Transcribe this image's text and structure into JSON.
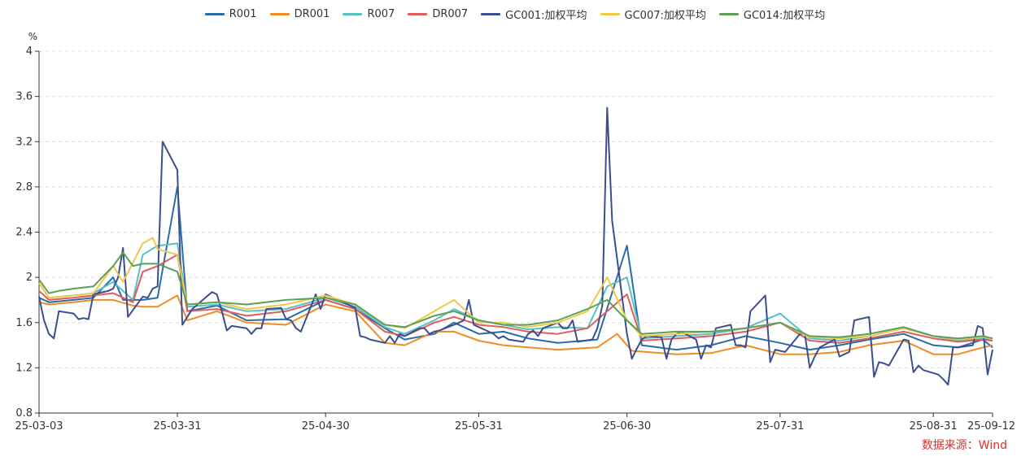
{
  "chart_data": {
    "type": "line",
    "ylabel": "%",
    "ylim": [
      0.8,
      4
    ],
    "yticks": [
      "0.8",
      "1.2",
      "1.6",
      "2",
      "2.4",
      "2.8",
      "3.2",
      "3.6",
      "4"
    ],
    "xticks": [
      "25-03-03",
      "25-03-31",
      "25-04-30",
      "25-05-31",
      "25-06-30",
      "25-07-31",
      "25-08-31",
      "25-09-12"
    ],
    "grid": "horizontal-dashed",
    "legend_position": "top-center",
    "source": "数据来源：Wind",
    "series": [
      {
        "name": "R001",
        "color": "#2b6ca3",
        "x": [
          "25-03-03",
          "25-03-05",
          "25-03-10",
          "25-03-14",
          "25-03-18",
          "25-03-20",
          "25-03-24",
          "25-03-27",
          "25-03-31",
          "25-04-02",
          "25-04-08",
          "25-04-14",
          "25-04-22",
          "25-04-30",
          "25-05-06",
          "25-05-12",
          "25-05-16",
          "25-05-22",
          "25-05-26",
          "25-05-31",
          "25-06-05",
          "25-06-10",
          "25-06-16",
          "25-06-24",
          "25-06-30",
          "25-07-03",
          "25-07-10",
          "25-07-17",
          "25-07-24",
          "25-07-31",
          "25-08-06",
          "25-08-12",
          "25-08-18",
          "25-08-25",
          "25-08-31",
          "25-09-05",
          "25-09-10",
          "25-09-12"
        ],
        "y": [
          1.82,
          1.78,
          1.8,
          1.82,
          2.0,
          1.8,
          1.8,
          1.82,
          2.8,
          1.7,
          1.75,
          1.62,
          1.63,
          1.8,
          1.72,
          1.55,
          1.45,
          1.5,
          1.6,
          1.5,
          1.52,
          1.46,
          1.42,
          1.45,
          2.28,
          1.4,
          1.36,
          1.4,
          1.48,
          1.42,
          1.36,
          1.4,
          1.45,
          1.5,
          1.4,
          1.38,
          1.45,
          1.38
        ]
      },
      {
        "name": "DR001",
        "color": "#f08c24",
        "x": [
          "25-03-03",
          "25-03-05",
          "25-03-10",
          "25-03-14",
          "25-03-18",
          "25-03-22",
          "25-03-24",
          "25-03-27",
          "25-03-31",
          "25-04-02",
          "25-04-08",
          "25-04-14",
          "25-04-22",
          "25-04-30",
          "25-05-06",
          "25-05-12",
          "25-05-16",
          "25-05-22",
          "25-05-26",
          "25-05-31",
          "25-06-05",
          "25-06-10",
          "25-06-16",
          "25-06-24",
          "25-06-28",
          "25-07-01",
          "25-07-10",
          "25-07-17",
          "25-07-24",
          "25-07-31",
          "25-08-06",
          "25-08-12",
          "25-08-18",
          "25-08-25",
          "25-08-31",
          "25-09-05",
          "25-09-10",
          "25-09-12"
        ],
        "y": [
          1.78,
          1.76,
          1.78,
          1.8,
          1.8,
          1.75,
          1.74,
          1.74,
          1.84,
          1.62,
          1.7,
          1.6,
          1.58,
          1.76,
          1.7,
          1.42,
          1.4,
          1.52,
          1.52,
          1.44,
          1.4,
          1.38,
          1.36,
          1.38,
          1.5,
          1.35,
          1.32,
          1.33,
          1.4,
          1.32,
          1.32,
          1.34,
          1.4,
          1.44,
          1.32,
          1.32,
          1.38,
          1.4
        ]
      },
      {
        "name": "R007",
        "color": "#5bc0c0",
        "x": [
          "25-03-03",
          "25-03-05",
          "25-03-10",
          "25-03-14",
          "25-03-18",
          "25-03-22",
          "25-03-24",
          "25-03-27",
          "25-03-31",
          "25-04-02",
          "25-04-08",
          "25-04-14",
          "25-04-22",
          "25-04-30",
          "25-05-06",
          "25-05-12",
          "25-05-16",
          "25-05-22",
          "25-05-26",
          "25-05-31",
          "25-06-05",
          "25-06-10",
          "25-06-16",
          "25-06-22",
          "25-06-26",
          "25-06-30",
          "25-07-03",
          "25-07-10",
          "25-07-17",
          "25-07-24",
          "25-07-31",
          "25-08-06",
          "25-08-12",
          "25-08-18",
          "25-08-25",
          "25-08-31",
          "25-09-05",
          "25-09-10",
          "25-09-12"
        ],
        "y": [
          1.95,
          1.82,
          1.84,
          1.86,
          1.96,
          1.8,
          2.2,
          2.28,
          2.3,
          1.74,
          1.76,
          1.7,
          1.72,
          1.82,
          1.74,
          1.56,
          1.5,
          1.62,
          1.72,
          1.62,
          1.58,
          1.54,
          1.56,
          1.55,
          1.92,
          2.0,
          1.46,
          1.48,
          1.5,
          1.55,
          1.68,
          1.46,
          1.44,
          1.48,
          1.55,
          1.48,
          1.44,
          1.46,
          1.44
        ]
      },
      {
        "name": "DR007",
        "color": "#e05d5d",
        "x": [
          "25-03-03",
          "25-03-05",
          "25-03-10",
          "25-03-14",
          "25-03-18",
          "25-03-22",
          "25-03-24",
          "25-03-27",
          "25-03-31",
          "25-04-02",
          "25-04-08",
          "25-04-14",
          "25-04-22",
          "25-04-30",
          "25-05-06",
          "25-05-12",
          "25-05-16",
          "25-05-22",
          "25-05-26",
          "25-05-31",
          "25-06-05",
          "25-06-10",
          "25-06-16",
          "25-06-22",
          "25-06-26",
          "25-06-30",
          "25-07-03",
          "25-07-10",
          "25-07-17",
          "25-07-24",
          "25-07-31",
          "25-08-06",
          "25-08-12",
          "25-08-18",
          "25-08-25",
          "25-08-31",
          "25-09-05",
          "25-09-10",
          "25-09-12"
        ],
        "y": [
          1.88,
          1.8,
          1.82,
          1.84,
          1.86,
          1.78,
          2.05,
          2.1,
          2.2,
          1.7,
          1.72,
          1.66,
          1.7,
          1.8,
          1.72,
          1.52,
          1.48,
          1.6,
          1.65,
          1.58,
          1.56,
          1.52,
          1.5,
          1.55,
          1.7,
          1.85,
          1.44,
          1.46,
          1.48,
          1.52,
          1.6,
          1.44,
          1.42,
          1.46,
          1.52,
          1.46,
          1.43,
          1.45,
          1.44
        ]
      },
      {
        "name": "GC001:加权平均",
        "color": "#3b4f8f",
        "x": [
          "25-03-03",
          "25-03-04",
          "25-03-05",
          "25-03-06",
          "25-03-07",
          "25-03-10",
          "25-03-11",
          "25-03-12",
          "25-03-13",
          "25-03-14",
          "25-03-17",
          "25-03-18",
          "25-03-19",
          "25-03-20",
          "25-03-21",
          "25-03-24",
          "25-03-25",
          "25-03-26",
          "25-03-27",
          "25-03-28",
          "25-03-31",
          "25-04-01",
          "25-04-02",
          "25-04-03",
          "25-04-07",
          "25-04-08",
          "25-04-09",
          "25-04-10",
          "25-04-11",
          "25-04-14",
          "25-04-15",
          "25-04-16",
          "25-04-17",
          "25-04-18",
          "25-04-21",
          "25-04-22",
          "25-04-23",
          "25-04-24",
          "25-04-25",
          "25-04-28",
          "25-04-29",
          "25-04-30",
          "25-05-06",
          "25-05-07",
          "25-05-08",
          "25-05-09",
          "25-05-12",
          "25-05-13",
          "25-05-14",
          "25-05-15",
          "25-05-16",
          "25-05-19",
          "25-05-20",
          "25-05-21",
          "25-05-22",
          "25-05-23",
          "25-05-26",
          "25-05-27",
          "25-05-28",
          "25-05-29",
          "25-05-30",
          "25-06-03",
          "25-06-04",
          "25-06-05",
          "25-06-06",
          "25-06-09",
          "25-06-10",
          "25-06-11",
          "25-06-12",
          "25-06-13",
          "25-06-16",
          "25-06-17",
          "25-06-18",
          "25-06-19",
          "25-06-20",
          "25-06-23",
          "25-06-24",
          "25-06-25",
          "25-06-26",
          "25-06-27",
          "25-06-30",
          "25-07-01",
          "25-07-02",
          "25-07-03",
          "25-07-04",
          "25-07-07",
          "25-07-08",
          "25-07-09",
          "25-07-10",
          "25-07-11",
          "25-07-14",
          "25-07-15",
          "25-07-16",
          "25-07-17",
          "25-07-18",
          "25-07-21",
          "25-07-22",
          "25-07-23",
          "25-07-24",
          "25-07-25",
          "25-07-28",
          "25-07-29",
          "25-07-30",
          "25-07-31",
          "25-08-01",
          "25-08-04",
          "25-08-05",
          "25-08-06",
          "25-08-07",
          "25-08-08",
          "25-08-11",
          "25-08-12",
          "25-08-13",
          "25-08-14",
          "25-08-15",
          "25-08-18",
          "25-08-19",
          "25-08-20",
          "25-08-21",
          "25-08-22",
          "25-08-25",
          "25-08-26",
          "25-08-27",
          "25-08-28",
          "25-08-29",
          "25-09-01",
          "25-09-02",
          "25-09-03",
          "25-09-04",
          "25-09-05",
          "25-09-08",
          "25-09-09",
          "25-09-10",
          "25-09-11",
          "25-09-12"
        ],
        "y": [
          1.83,
          1.62,
          1.5,
          1.46,
          1.7,
          1.68,
          1.63,
          1.64,
          1.63,
          1.85,
          1.88,
          1.9,
          2.0,
          2.26,
          1.65,
          1.83,
          1.82,
          1.9,
          1.92,
          3.2,
          2.95,
          1.58,
          1.65,
          1.72,
          1.87,
          1.85,
          1.7,
          1.53,
          1.57,
          1.55,
          1.5,
          1.55,
          1.55,
          1.72,
          1.73,
          1.63,
          1.62,
          1.55,
          1.52,
          1.85,
          1.72,
          1.85,
          1.73,
          1.48,
          1.47,
          1.45,
          1.42,
          1.48,
          1.42,
          1.5,
          1.48,
          1.55,
          1.55,
          1.5,
          1.52,
          1.53,
          1.58,
          1.6,
          1.62,
          1.8,
          1.58,
          1.5,
          1.46,
          1.48,
          1.45,
          1.43,
          1.5,
          1.53,
          1.48,
          1.55,
          1.6,
          1.55,
          1.55,
          1.62,
          1.43,
          1.45,
          1.55,
          1.75,
          3.5,
          2.5,
          1.5,
          1.28,
          1.37,
          1.45,
          1.48,
          1.47,
          1.28,
          1.45,
          1.5,
          1.52,
          1.45,
          1.28,
          1.4,
          1.38,
          1.55,
          1.58,
          1.4,
          1.4,
          1.38,
          1.7,
          1.84,
          1.25,
          1.36,
          1.35,
          1.34,
          1.5,
          1.5,
          1.2,
          1.3,
          1.38,
          1.45,
          1.3,
          1.32,
          1.34,
          1.62,
          1.65,
          1.12,
          1.25,
          1.24,
          1.22,
          1.45,
          1.44,
          1.16,
          1.22,
          1.18,
          1.14,
          1.1,
          1.05,
          1.38,
          1.38,
          1.4,
          1.57,
          1.55,
          1.14,
          1.36
        ]
      },
      {
        "name": "GC007:加权平均",
        "color": "#f0c84a",
        "x": [
          "25-03-03",
          "25-03-05",
          "25-03-10",
          "25-03-14",
          "25-03-18",
          "25-03-20",
          "25-03-24",
          "25-03-26",
          "25-03-27",
          "25-03-31",
          "25-04-02",
          "25-04-08",
          "25-04-14",
          "25-04-22",
          "25-04-30",
          "25-05-06",
          "25-05-12",
          "25-05-16",
          "25-05-22",
          "25-05-26",
          "25-05-31",
          "25-06-05",
          "25-06-10",
          "25-06-16",
          "25-06-22",
          "25-06-26",
          "25-06-30",
          "25-07-03",
          "25-07-10",
          "25-07-17",
          "25-07-24",
          "25-07-31",
          "25-08-06",
          "25-08-12",
          "25-08-18",
          "25-08-25",
          "25-08-31",
          "25-09-05",
          "25-09-10",
          "25-09-12"
        ],
        "y": [
          1.95,
          1.82,
          1.84,
          1.86,
          2.1,
          1.96,
          2.3,
          2.35,
          2.25,
          2.2,
          1.76,
          1.78,
          1.72,
          1.76,
          1.84,
          1.76,
          1.58,
          1.55,
          1.7,
          1.8,
          1.6,
          1.6,
          1.56,
          1.6,
          1.7,
          2.0,
          1.62,
          1.48,
          1.5,
          1.52,
          1.55,
          1.6,
          1.47,
          1.46,
          1.48,
          1.55,
          1.48,
          1.45,
          1.47,
          1.46
        ]
      },
      {
        "name": "GC014:加权平均",
        "color": "#5aa05a",
        "x": [
          "25-03-03",
          "25-03-05",
          "25-03-07",
          "25-03-10",
          "25-03-14",
          "25-03-18",
          "25-03-20",
          "25-03-22",
          "25-03-24",
          "25-03-27",
          "25-03-31",
          "25-04-02",
          "25-04-08",
          "25-04-14",
          "25-04-22",
          "25-04-30",
          "25-05-06",
          "25-05-12",
          "25-05-16",
          "25-05-22",
          "25-05-26",
          "25-05-31",
          "25-06-05",
          "25-06-10",
          "25-06-16",
          "25-06-22",
          "25-06-26",
          "25-06-30",
          "25-07-03",
          "25-07-10",
          "25-07-17",
          "25-07-24",
          "25-07-31",
          "25-08-06",
          "25-08-12",
          "25-08-18",
          "25-08-25",
          "25-08-31",
          "25-09-05",
          "25-09-10",
          "25-09-12"
        ],
        "y": [
          1.98,
          1.86,
          1.88,
          1.9,
          1.92,
          2.1,
          2.22,
          2.1,
          2.12,
          2.12,
          2.05,
          1.76,
          1.78,
          1.76,
          1.8,
          1.82,
          1.76,
          1.58,
          1.56,
          1.66,
          1.7,
          1.62,
          1.58,
          1.58,
          1.62,
          1.72,
          1.8,
          1.62,
          1.5,
          1.52,
          1.52,
          1.55,
          1.6,
          1.48,
          1.47,
          1.5,
          1.56,
          1.48,
          1.46,
          1.48,
          1.46
        ]
      }
    ]
  }
}
